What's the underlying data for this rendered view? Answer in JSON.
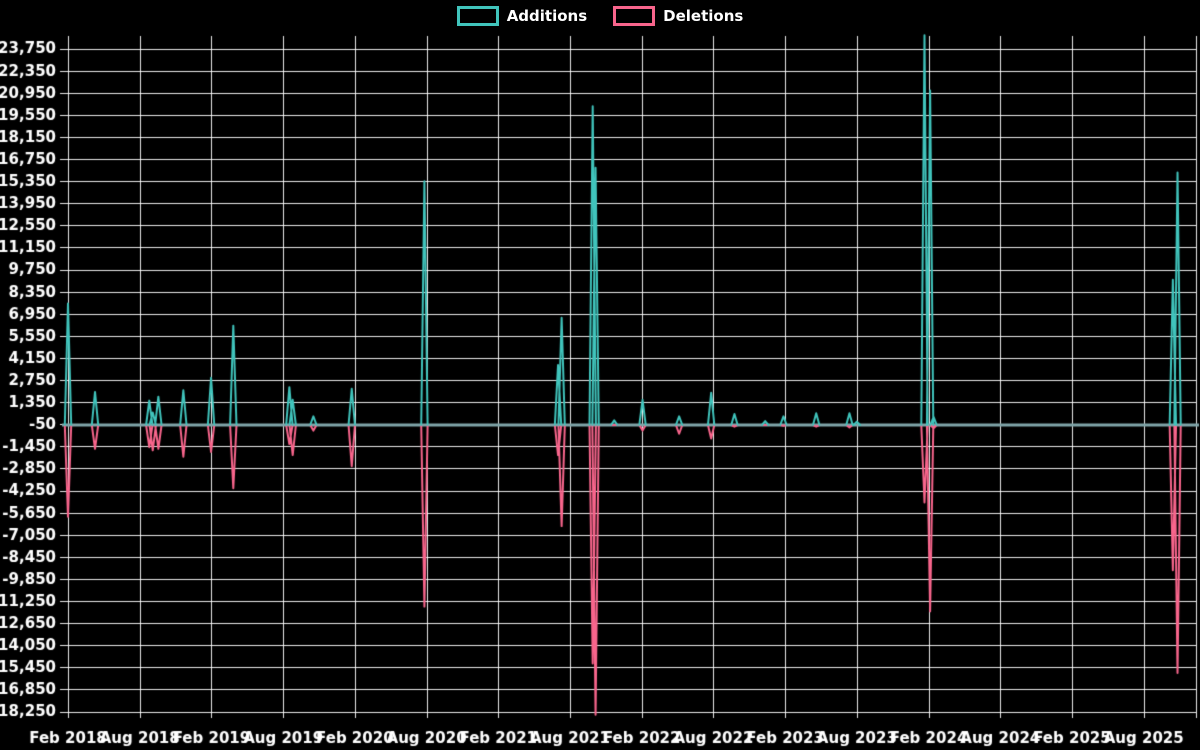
{
  "page": {
    "background": "#000000",
    "text_color": "#ffffff",
    "grid_color": "#ffffff"
  },
  "legend": {
    "items": [
      {
        "label": "Additions",
        "color": "#40C4BC"
      },
      {
        "label": "Deletions",
        "color": "#F8658C"
      }
    ]
  },
  "chart_data": {
    "type": "line",
    "title": "",
    "legend_position": "top-center",
    "background": "#000000",
    "grid": true,
    "x_axis": {
      "unit": "months_after_first_tick",
      "first_tick_label": "Feb 2018",
      "tick_interval_months": 6,
      "tick_labels": [
        "Feb 2018",
        "Aug 2018",
        "Feb 2019",
        "Aug 2019",
        "Feb 2020",
        "Aug 2020",
        "Feb 2021",
        "Aug 2021",
        "Feb 2022",
        "Aug 2022",
        "Feb 2023",
        "Aug 2023",
        "Feb 2024",
        "Aug 2024",
        "Feb 2025",
        "Aug 2025"
      ]
    },
    "y_axis": {
      "max": 23750,
      "min": -18250,
      "step": 1400,
      "tick_labels": [
        "23,750",
        "22,350",
        "20,950",
        "19,550",
        "18,150",
        "16,750",
        "15,350",
        "13,950",
        "12,550",
        "11,150",
        "9,750",
        "8,350",
        "6,950",
        "5,550",
        "4,150",
        "2,750",
        "1,350",
        "-50",
        "-1,450",
        "-2,850",
        "-4,250",
        "-5,650",
        "-7,050",
        "-8,450",
        "-9,850",
        "-11,250",
        "-12,650",
        "-14,050",
        "-15,450",
        "-16,850",
        "-18,250"
      ]
    },
    "baseline": {
      "value": 0,
      "color": "#7FA5A9"
    },
    "series": [
      {
        "name": "Additions",
        "color": "#40C4BC",
        "points": [
          [
            0,
            7600
          ],
          [
            2.26,
            2000
          ],
          [
            6.8,
            1450
          ],
          [
            7.09,
            700
          ],
          [
            7.56,
            1700
          ],
          [
            9.65,
            2100
          ],
          [
            11.97,
            2900
          ],
          [
            13.83,
            6200
          ],
          [
            18.52,
            2300
          ],
          [
            18.8,
            1500
          ],
          [
            20.53,
            450
          ],
          [
            23.74,
            2200
          ],
          [
            29.82,
            15350
          ],
          [
            41.0,
            3700
          ],
          [
            41.3,
            6700
          ],
          [
            43.9,
            20100
          ],
          [
            44.14,
            16200
          ],
          [
            45.7,
            200
          ],
          [
            48.07,
            1500
          ],
          [
            51.13,
            450
          ],
          [
            53.81,
            1950
          ],
          [
            55.76,
            600
          ],
          [
            58.33,
            150
          ],
          [
            59.86,
            450
          ],
          [
            62.6,
            650
          ],
          [
            65.38,
            650
          ],
          [
            66.0,
            120
          ],
          [
            71.66,
            24600
          ],
          [
            72.13,
            21100
          ],
          [
            72.42,
            420
          ],
          [
            92.44,
            9100
          ],
          [
            92.83,
            15900
          ]
        ]
      },
      {
        "name": "Deletions",
        "color": "#F8658C",
        "points": [
          [
            0,
            -5900
          ],
          [
            2.26,
            -1600
          ],
          [
            6.8,
            -1500
          ],
          [
            7.09,
            -1700
          ],
          [
            7.56,
            -1600
          ],
          [
            9.65,
            -2100
          ],
          [
            11.97,
            -1800
          ],
          [
            13.83,
            -4100
          ],
          [
            18.52,
            -1300
          ],
          [
            18.8,
            -2000
          ],
          [
            20.53,
            -450
          ],
          [
            23.74,
            -2700
          ],
          [
            29.82,
            -11600
          ],
          [
            41.0,
            -2000
          ],
          [
            41.3,
            -6500
          ],
          [
            43.9,
            -15200
          ],
          [
            44.14,
            -18450
          ],
          [
            45.7,
            -100
          ],
          [
            48.07,
            -450
          ],
          [
            51.13,
            -650
          ],
          [
            53.81,
            -950
          ],
          [
            55.76,
            -200
          ],
          [
            58.33,
            -100
          ],
          [
            59.86,
            -150
          ],
          [
            62.6,
            -200
          ],
          [
            65.38,
            -250
          ],
          [
            66.0,
            0
          ],
          [
            71.66,
            -5000
          ],
          [
            72.13,
            -11900
          ],
          [
            72.42,
            -300
          ],
          [
            92.44,
            -9300
          ],
          [
            92.83,
            -15800
          ]
        ]
      }
    ]
  }
}
